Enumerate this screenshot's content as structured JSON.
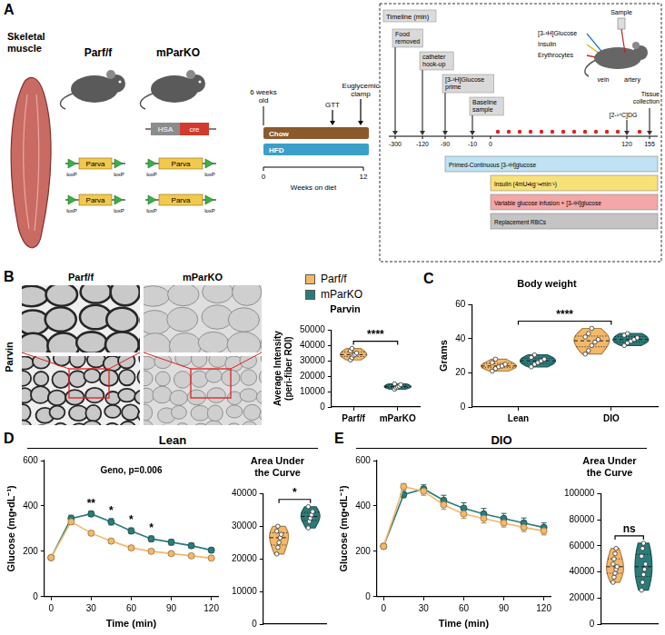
{
  "panel_letters": [
    "A",
    "B",
    "C",
    "D",
    "E"
  ],
  "legend_items": [
    {
      "name": "Parf/f",
      "color": "#F4B86A"
    },
    {
      "name": "mParKO",
      "color": "#2A7C79"
    }
  ],
  "row_titles": [
    "Lean",
    "DIO"
  ],
  "panel_a": {
    "muscle_label": "Skeletal muscle",
    "genotypes": [
      {
        "name": "Parf/f"
      },
      {
        "name": "mParKO",
        "driver": [
          "HSA",
          "cre"
        ]
      }
    ],
    "gene": "Parva",
    "site": "loxP",
    "study": {
      "age": "6 weeks old",
      "diets": [
        "Chow",
        "HFD"
      ],
      "axis_title": "Weeks on diet",
      "axis_ticks": [
        0,
        12
      ],
      "events": [
        "GTT",
        "Euglycemic clamp"
      ]
    },
    "clamp": {
      "timeline_title": "Timeline (min)",
      "ticks": [
        -300,
        -120,
        -90,
        -10,
        0,
        120,
        155
      ],
      "steps": [
        {
          "time": -300,
          "label": "Food removed"
        },
        {
          "time": -120,
          "label": "catheter hook-up"
        },
        {
          "time": -90,
          "label": "[3-³H]Glucose prime"
        },
        {
          "time": -10,
          "label": "Baseline sample"
        },
        {
          "time": 120,
          "label": "[2-¹⁴C]DG"
        },
        {
          "time": 155,
          "label": "Tissue collection"
        }
      ],
      "infusion_labels": [
        "[3-³H]Glucose",
        "Insulin",
        "Erythrocytes"
      ],
      "sample_label": "Sample",
      "vessels": [
        "vein",
        "artery"
      ],
      "bars": [
        {
          "start": -90,
          "label": "Primed-Continuous [3-³H]glucose"
        },
        {
          "start": 0,
          "label": "Insulin (4mU•kg⁻¹•min⁻¹)"
        },
        {
          "start": 0,
          "label": "Variable glucose infusion + [3-³H]glucose"
        },
        {
          "start": 0,
          "label": "Replacement RBCs"
        }
      ]
    }
  },
  "panel_b_images": {
    "stain": "Parvin",
    "columns": [
      "Parf/f",
      "mParKO"
    ]
  },
  "chart_data": [
    {
      "type": "violin",
      "title": "Parvin",
      "y_label": "Average Intensity (peri-fiber ROI)",
      "categories": [
        "Parf/f",
        "mParKO"
      ],
      "series": [
        {
          "name": "Parf/f",
          "color": "#F4B86A",
          "values": [
            [
              30500,
              32000,
              33500,
              34000,
              35000,
              36500,
              38000
            ],
            null
          ]
        },
        {
          "name": "mParKO",
          "color": "#2A7C79",
          "values": [
            null,
            [
              11500,
              12500,
              13000,
              13500,
              14500,
              15000
            ]
          ]
        }
      ],
      "ylim": [
        0,
        50000
      ],
      "yticks": [
        0,
        10000,
        20000,
        30000,
        40000,
        50000
      ],
      "grid": false,
      "significance": [
        {
          "between": [
            "Parf/f",
            "mParKO"
          ],
          "label": "****"
        }
      ]
    },
    {
      "type": "violin",
      "title": "Body weight",
      "y_label": "Grams",
      "categories": [
        "Lean",
        "DIO"
      ],
      "series": [
        {
          "name": "Parf/f",
          "color": "#F4B86A",
          "values": [
            [
              21,
              22.5,
              23.5,
              24,
              25,
              26,
              28
            ],
            [
              31,
              33,
              36,
              38,
              39.5,
              41,
              43,
              46
            ]
          ]
        },
        {
          "name": "mParKO",
          "color": "#2A7C79",
          "values": [
            [
              23.5,
              25,
              26,
              27,
              28,
              29,
              30.5
            ],
            [
              36,
              37.5,
              38.5,
              39.5,
              40.5,
              42,
              43
            ]
          ]
        }
      ],
      "ylim": [
        0,
        60
      ],
      "yticks": [
        0,
        20,
        40,
        60
      ],
      "grid": false,
      "significance": [
        {
          "between": [
            "Lean",
            "DIO"
          ],
          "label": "****"
        }
      ]
    },
    {
      "type": "line",
      "x": [
        0,
        15,
        30,
        45,
        60,
        75,
        90,
        105,
        120
      ],
      "xlim": [
        -5,
        125
      ],
      "xticks": [
        0,
        30,
        60,
        90,
        120
      ],
      "ylim": [
        0,
        600
      ],
      "yticks": [
        0,
        200,
        400,
        600
      ],
      "x_label": "Time (min)",
      "y_label": "Glucose (mg•dL⁻¹)",
      "marker": "circle",
      "line_style": "solid",
      "grid": false,
      "series": [
        {
          "name": "Parf/f",
          "color": "#F4B86A",
          "values": [
            172,
            330,
            280,
            245,
            215,
            200,
            190,
            180,
            170
          ],
          "errors": [
            8,
            12,
            10,
            10,
            9,
            8,
            8,
            7,
            7
          ]
        },
        {
          "name": "mParKO",
          "color": "#2A7C79",
          "values": [
            172,
            345,
            365,
            330,
            290,
            255,
            240,
            225,
            205
          ],
          "errors": [
            8,
            14,
            12,
            14,
            13,
            12,
            12,
            11,
            10
          ]
        }
      ],
      "annotations": [
        {
          "text": "Geno, p=0.006"
        }
      ],
      "significance": [
        {
          "x": 30,
          "label": "**"
        },
        {
          "x": 45,
          "label": "*"
        },
        {
          "x": 60,
          "label": "*"
        },
        {
          "x": 75,
          "label": "*"
        }
      ]
    },
    {
      "type": "violin",
      "title": "Area Under the Curve",
      "tick_labels": "y",
      "series": [
        {
          "name": "Parf/f",
          "color": "#F4B86A",
          "values": [
            21500,
            23500,
            25000,
            26500,
            27500,
            28500,
            30000
          ]
        },
        {
          "name": "mParKO",
          "color": "#2A7C79",
          "values": [
            29500,
            31500,
            32500,
            33500,
            34500,
            36000
          ]
        }
      ],
      "ylim": [
        0,
        40000
      ],
      "yticks": [
        0,
        10000,
        20000,
        30000,
        40000
      ],
      "grid": false,
      "significance": [
        {
          "between": [
            "Parf/f",
            "mParKO"
          ],
          "label": "*"
        }
      ]
    },
    {
      "type": "line",
      "x": [
        0,
        15,
        30,
        45,
        60,
        75,
        90,
        105,
        120
      ],
      "xlim": [
        -5,
        125
      ],
      "xticks": [
        0,
        30,
        60,
        90,
        120
      ],
      "ylim": [
        0,
        600
      ],
      "yticks": [
        0,
        200,
        400,
        600
      ],
      "x_label": "Time (min)",
      "y_label": "Glucose (mg•dL⁻¹)",
      "marker": "circle",
      "line_style": "solid",
      "grid": false,
      "series": [
        {
          "name": "Parf/f",
          "color": "#F4B86A",
          "values": [
            222,
            485,
            465,
            405,
            365,
            345,
            325,
            305,
            290
          ],
          "errors": [
            10,
            14,
            18,
            20,
            20,
            20,
            18,
            18,
            18
          ]
        },
        {
          "name": "mParKO",
          "color": "#2A7C79",
          "values": [
            222,
            450,
            475,
            425,
            390,
            365,
            345,
            325,
            305
          ],
          "errors": [
            10,
            14,
            18,
            22,
            24,
            24,
            22,
            22,
            20
          ]
        }
      ]
    },
    {
      "type": "violin",
      "title": "Area Under the Curve",
      "tick_labels": "y",
      "series": [
        {
          "name": "Parf/f",
          "color": "#F4B86A",
          "values": [
            32000,
            36000,
            39000,
            42000,
            44000,
            46000,
            50000,
            54000,
            58000
          ]
        },
        {
          "name": "mParKO",
          "color": "#2A7C79",
          "values": [
            26000,
            32000,
            38000,
            42000,
            46000,
            52000,
            58000,
            62000
          ]
        }
      ],
      "ylim": [
        0,
        100000
      ],
      "yticks": [
        0,
        20000,
        40000,
        60000,
        80000,
        100000
      ],
      "grid": false,
      "significance": [
        {
          "between": [
            "Parf/f",
            "mParKO"
          ],
          "label": "ns"
        }
      ]
    }
  ]
}
